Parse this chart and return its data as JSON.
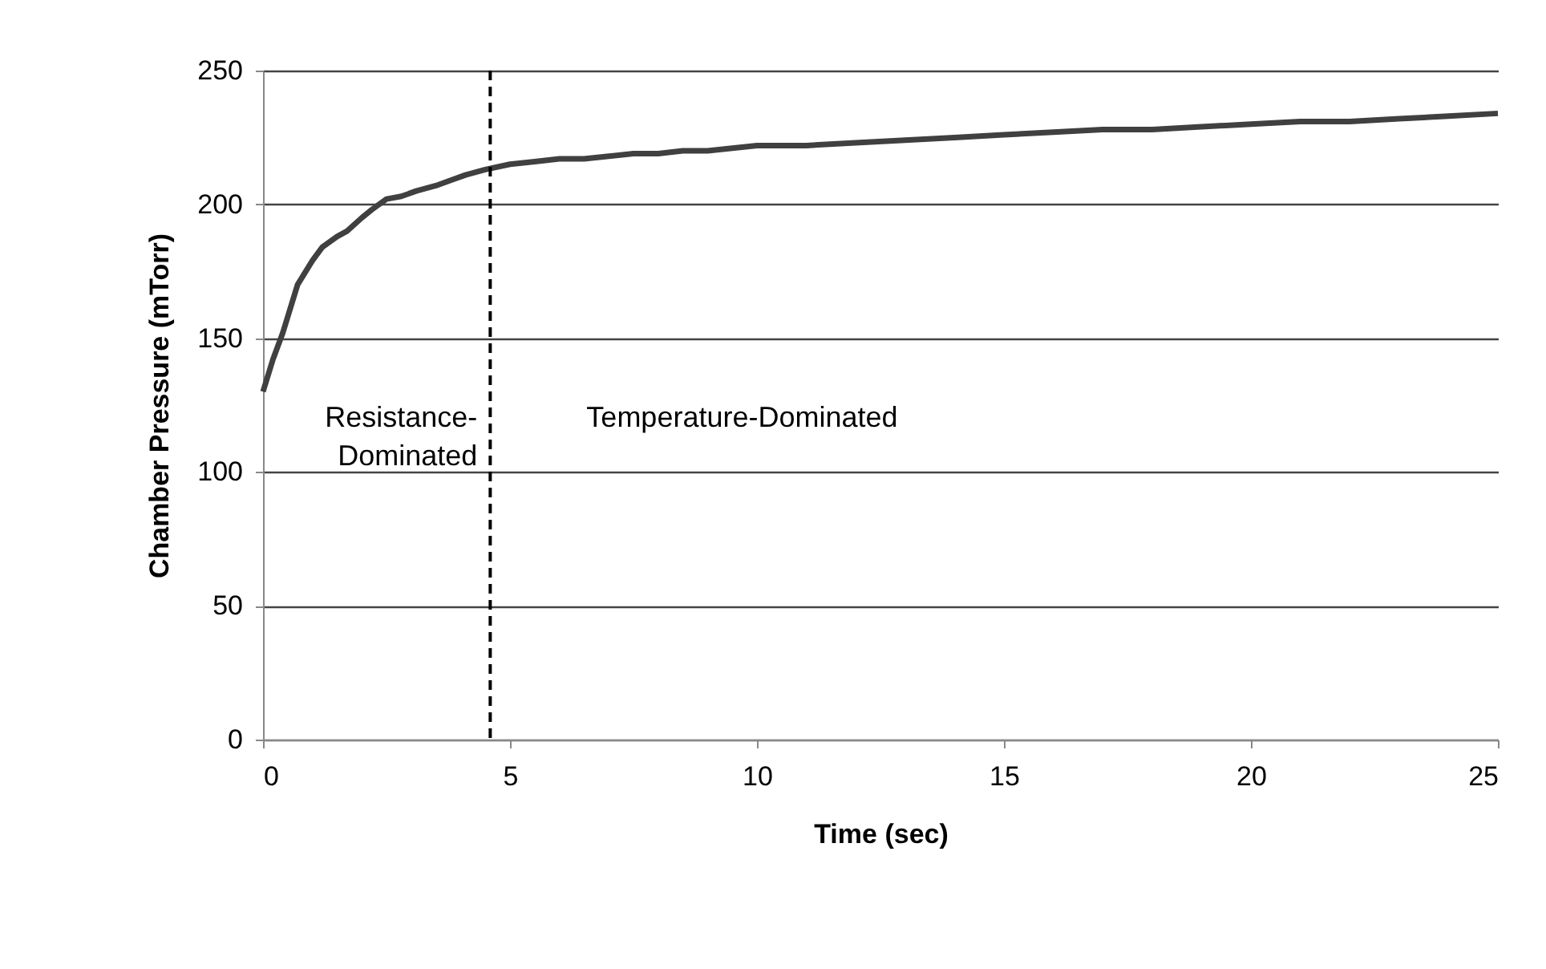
{
  "chart_data": {
    "type": "line",
    "xlabel": "Time (sec)",
    "ylabel": "Chamber Pressure (mTorr)",
    "x": [
      0,
      0.2,
      0.4,
      0.7,
      1.0,
      1.2,
      1.5,
      1.7,
      2.0,
      2.2,
      2.5,
      2.8,
      3.1,
      3.5,
      3.8,
      4.1,
      4.5,
      5.0,
      5.5,
      6.0,
      6.5,
      7.0,
      7.5,
      8.0,
      8.5,
      9.0,
      9.5,
      10,
      11,
      12,
      13,
      14,
      15,
      16,
      17,
      18,
      19,
      20,
      21,
      22,
      23,
      24,
      25
    ],
    "series": [
      {
        "color": "#404040",
        "values": [
          130,
          142,
          152,
          170,
          179,
          184,
          188,
          190,
          195,
          198,
          202,
          203,
          205,
          207,
          209,
          211,
          213,
          215,
          216,
          217,
          217,
          218,
          219,
          219,
          220,
          220,
          221,
          222,
          222,
          223,
          224,
          225,
          226,
          227,
          228,
          228,
          229,
          230,
          231,
          231,
          232,
          233,
          234
        ]
      }
    ],
    "xlim": [
      0,
      25
    ],
    "xticks": [
      0,
      5,
      10,
      15,
      20,
      25
    ],
    "ylim": [
      0,
      250
    ],
    "yticks": [
      0,
      50,
      100,
      150,
      200,
      250
    ],
    "grid": "y",
    "ref_lines": [
      {
        "axis": "x",
        "value": 4.6,
        "color": "#000000",
        "line_style": "dashed"
      }
    ],
    "annotations": [
      "Resistance-\nDominated",
      "Temperature-Dominated"
    ]
  }
}
